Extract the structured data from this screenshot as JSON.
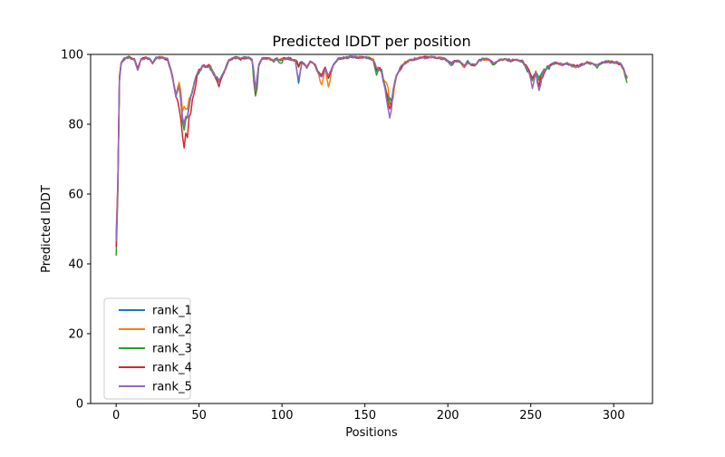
{
  "figure": {
    "title": "Predicted lDDT per position",
    "xlabel": "Positions",
    "ylabel": "Predicted lDDT"
  },
  "chart_data": {
    "type": "line",
    "title": "Predicted lDDT per position",
    "xlabel": "Positions",
    "ylabel": "Predicted lDDT",
    "xlim": [
      -15.4,
      323.4
    ],
    "ylim": [
      0,
      100
    ],
    "x_ticks": [
      0,
      50,
      100,
      150,
      200,
      250,
      300
    ],
    "y_ticks": [
      0,
      20,
      40,
      60,
      80,
      100
    ],
    "n_positions": 309,
    "grid": false,
    "legend": {
      "position": "lower left",
      "entries": [
        "rank_1",
        "rank_2",
        "rank_3",
        "rank_4",
        "rank_5"
      ]
    },
    "base_keypoints": [
      [
        0,
        45
      ],
      [
        1,
        78
      ],
      [
        2,
        93
      ],
      [
        3,
        97.5
      ],
      [
        5,
        98.8
      ],
      [
        8,
        99.2
      ],
      [
        11,
        98.6
      ],
      [
        13,
        95.6
      ],
      [
        15,
        98.6
      ],
      [
        18,
        99.1
      ],
      [
        20,
        98.9
      ],
      [
        22,
        97.6
      ],
      [
        24,
        98.9
      ],
      [
        27,
        99.1
      ],
      [
        29,
        99
      ],
      [
        31,
        98.5
      ],
      [
        33,
        95.5
      ],
      [
        35,
        91
      ],
      [
        36,
        88
      ],
      [
        37,
        89.5
      ],
      [
        38,
        90.5
      ],
      [
        39,
        87
      ],
      [
        40,
        83
      ],
      [
        41,
        80
      ],
      [
        42,
        84
      ],
      [
        43,
        82.5
      ],
      [
        44,
        85.5
      ],
      [
        46,
        89.5
      ],
      [
        48,
        93.5
      ],
      [
        50,
        95.5
      ],
      [
        52,
        96.8
      ],
      [
        54,
        96.5
      ],
      [
        56,
        96.8
      ],
      [
        58,
        95.5
      ],
      [
        60,
        93.5
      ],
      [
        62,
        92.8
      ],
      [
        64,
        94
      ],
      [
        66,
        96
      ],
      [
        68,
        98.3
      ],
      [
        71,
        99.1
      ],
      [
        75,
        98.8
      ],
      [
        79,
        99.1
      ],
      [
        81,
        98.8
      ],
      [
        82,
        98.3
      ],
      [
        83,
        95
      ],
      [
        84,
        89
      ],
      [
        85,
        93.5
      ],
      [
        86,
        97
      ],
      [
        88,
        98.8
      ],
      [
        92,
        98.9
      ],
      [
        95,
        98.1
      ],
      [
        97,
        98.7
      ],
      [
        99,
        98.4
      ],
      [
        101,
        98.8
      ],
      [
        103,
        98.9
      ],
      [
        106,
        98.5
      ],
      [
        109,
        98
      ],
      [
        110,
        96.5
      ],
      [
        111,
        97.8
      ],
      [
        113,
        97.4
      ],
      [
        115,
        96.4
      ],
      [
        117,
        98
      ],
      [
        120,
        97
      ],
      [
        122,
        94.5
      ],
      [
        124,
        94
      ],
      [
        126,
        96
      ],
      [
        128,
        93.5
      ],
      [
        131,
        97
      ],
      [
        134,
        98.8
      ],
      [
        138,
        99.1
      ],
      [
        142,
        99.3
      ],
      [
        146,
        99.1
      ],
      [
        150,
        99.1
      ],
      [
        153,
        98.8
      ],
      [
        155,
        98.4
      ],
      [
        157,
        96
      ],
      [
        158,
        96.4
      ],
      [
        160,
        95
      ],
      [
        162,
        91
      ],
      [
        164,
        87.5
      ],
      [
        165,
        86
      ],
      [
        166,
        86.5
      ],
      [
        167,
        89.5
      ],
      [
        169,
        94
      ],
      [
        172,
        96.5
      ],
      [
        174,
        97.6
      ],
      [
        177,
        98.3
      ],
      [
        181,
        98.8
      ],
      [
        185,
        99.1
      ],
      [
        189,
        99.3
      ],
      [
        193,
        99.1
      ],
      [
        197,
        98.8
      ],
      [
        200,
        98.2
      ],
      [
        202,
        97.2
      ],
      [
        204,
        98.2
      ],
      [
        207,
        98
      ],
      [
        210,
        96.8
      ],
      [
        212,
        97.8
      ],
      [
        214,
        97.2
      ],
      [
        217,
        97
      ],
      [
        219,
        98.3
      ],
      [
        222,
        98.8
      ],
      [
        225,
        98.4
      ],
      [
        228,
        97.4
      ],
      [
        231,
        98.4
      ],
      [
        235,
        98.6
      ],
      [
        238,
        98.2
      ],
      [
        241,
        98.5
      ],
      [
        243,
        98.2
      ],
      [
        245,
        98
      ],
      [
        247,
        96.5
      ],
      [
        249,
        95
      ],
      [
        251,
        93
      ],
      [
        253,
        94.8
      ],
      [
        255,
        93
      ],
      [
        257,
        94.8
      ],
      [
        259,
        95.5
      ],
      [
        261,
        96.4
      ],
      [
        263,
        97.3
      ],
      [
        266,
        97.6
      ],
      [
        269,
        97
      ],
      [
        272,
        97.5
      ],
      [
        275,
        96.8
      ],
      [
        278,
        96.5
      ],
      [
        281,
        97.1
      ],
      [
        284,
        97.7
      ],
      [
        287,
        97.4
      ],
      [
        290,
        96.9
      ],
      [
        293,
        97.6
      ],
      [
        296,
        98
      ],
      [
        299,
        97.8
      ],
      [
        302,
        97.6
      ],
      [
        304,
        97.2
      ],
      [
        306,
        95.8
      ],
      [
        307,
        94.5
      ],
      [
        308,
        93.2
      ]
    ],
    "series": [
      {
        "name": "rank_1",
        "color": "#1f77b4",
        "start": 47.5,
        "seed": 11,
        "overrides": [
          [
            41,
            80
          ],
          [
            110,
            92.5
          ],
          [
            157,
            94.5
          ],
          [
            165,
            87.5
          ]
        ]
      },
      {
        "name": "rank_2",
        "color": "#ff7f0e",
        "start": 48.5,
        "seed": 22,
        "overrides": [
          [
            38,
            91.5
          ],
          [
            41,
            84.5
          ],
          [
            44,
            87.5
          ],
          [
            124,
            91
          ],
          [
            128,
            90.5
          ],
          [
            163,
            92.5
          ],
          [
            166,
            85.5
          ],
          [
            210,
            96.2
          ],
          [
            278,
            96
          ]
        ]
      },
      {
        "name": "rank_3",
        "color": "#2ca02c",
        "start": 42.5,
        "seed": 33,
        "overrides": [
          [
            41,
            79
          ],
          [
            49,
            94.3
          ],
          [
            62,
            92.3
          ],
          [
            84,
            88.2
          ],
          [
            99,
            97.2
          ],
          [
            157,
            93.5
          ],
          [
            202,
            96.4
          ],
          [
            228,
            96.8
          ],
          [
            290,
            96.3
          ],
          [
            308,
            92.4
          ]
        ]
      },
      {
        "name": "rank_4",
        "color": "#d62728",
        "start": 45,
        "seed": 44,
        "overrides": [
          [
            38,
            84
          ],
          [
            40,
            77
          ],
          [
            41,
            73.5
          ],
          [
            43,
            76.5
          ],
          [
            45,
            83
          ],
          [
            47,
            89
          ],
          [
            62,
            91.3
          ],
          [
            165,
            84.5
          ],
          [
            255,
            91.3
          ],
          [
            257,
            93.2
          ]
        ]
      },
      {
        "name": "rank_5",
        "color": "#9467bd",
        "start": 46.5,
        "seed": 55,
        "overrides": [
          [
            41,
            80.5
          ],
          [
            110,
            93
          ],
          [
            164,
            84.5
          ],
          [
            165,
            82
          ],
          [
            251,
            90.5
          ],
          [
            255,
            89.2
          ]
        ]
      }
    ]
  }
}
